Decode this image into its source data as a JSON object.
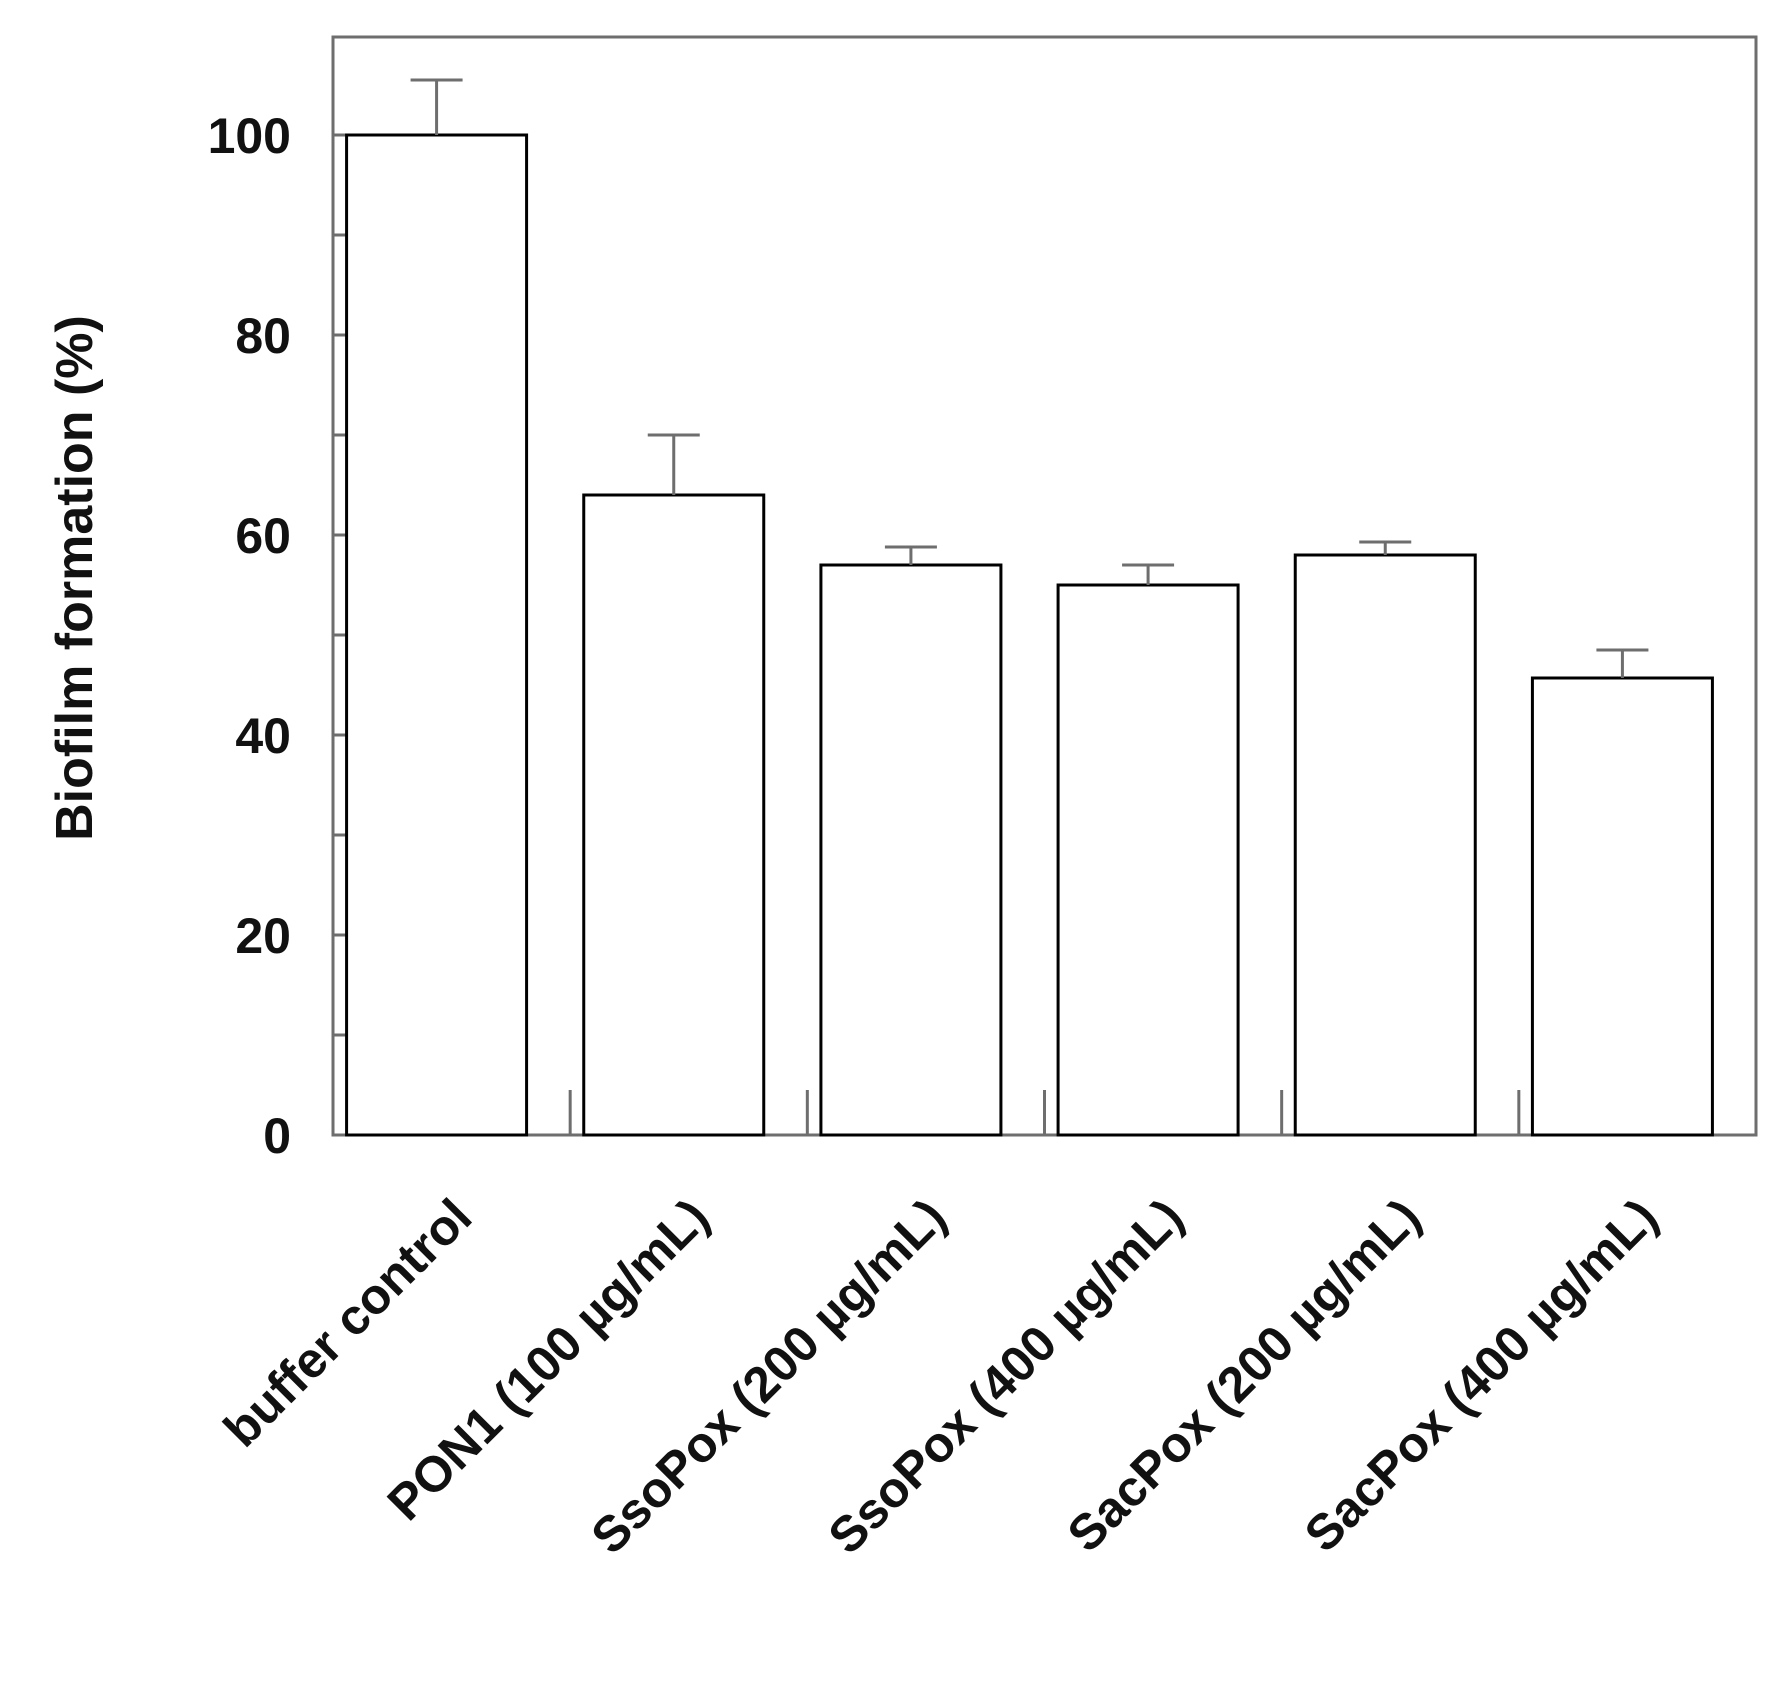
{
  "chart_data": {
    "type": "bar",
    "title": "",
    "xlabel": "",
    "ylabel": "Biofilm formation (%)",
    "ylim": [
      0,
      100
    ],
    "yticks": [
      0,
      20,
      40,
      60,
      80,
      100
    ],
    "minor_ytick_step": 10,
    "grid": false,
    "legend": "none",
    "bar_fill": "#ffffff",
    "bar_stroke": "#000000",
    "categories": [
      "buffer control",
      "PON1 (100 µg/mL)",
      "SsoPox (200 µg/mL)",
      "SsoPox (400 µg/mL)",
      "SacPox (200 µg/mL)",
      "SacPox (400 µg/mL)"
    ],
    "values": [
      100,
      64,
      57,
      55,
      58,
      45.7
    ],
    "errors": [
      5.5,
      6,
      1.8,
      2,
      1.3,
      2.8
    ]
  }
}
